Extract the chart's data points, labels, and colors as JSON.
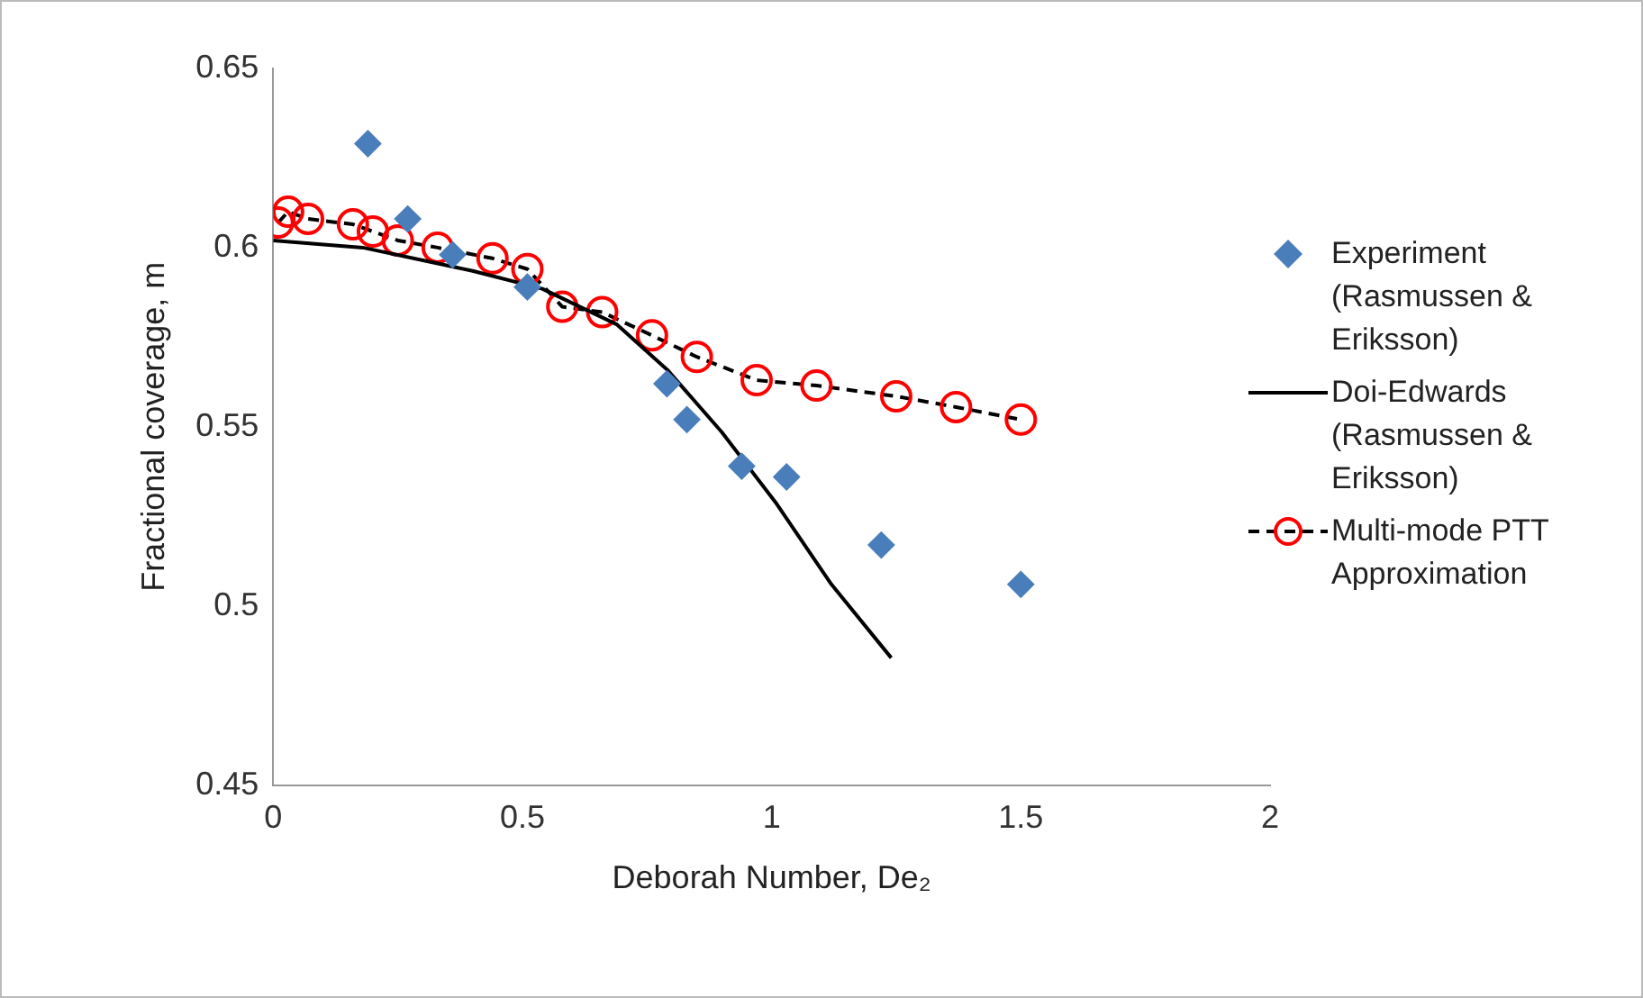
{
  "chart_data": {
    "type": "scatter",
    "xlabel": "Deborah Number, De₂",
    "ylabel": "Fractional coverage, m",
    "xlim": [
      0,
      2
    ],
    "xticks": [
      0,
      0.5,
      1,
      1.5,
      2
    ],
    "ylim": [
      0.45,
      0.65
    ],
    "yticks": [
      0.45,
      0.5,
      0.55,
      0.6,
      0.65
    ],
    "grid": false,
    "legend": "right",
    "series": [
      {
        "name": "Experiment (Rasmussen & Eriksson)",
        "marker": "diamond",
        "color": "#4a7ebb",
        "x": [
          0.19,
          0.27,
          0.36,
          0.51,
          0.79,
          0.83,
          0.94,
          1.03,
          1.22,
          1.5
        ],
        "values": [
          0.629,
          0.608,
          0.598,
          0.589,
          0.562,
          0.552,
          0.539,
          0.536,
          0.517,
          0.506
        ]
      },
      {
        "name": "Doi-Edwards (Rasmussen & Eriksson)",
        "type": "line",
        "marker": "none",
        "line_style": "solid",
        "color": "#000000",
        "x": [
          0,
          0.18,
          0.4,
          0.54,
          0.69,
          0.79,
          0.9,
          1.01,
          1.12,
          1.24
        ],
        "values": [
          0.602,
          0.6,
          0.5935,
          0.5885,
          0.5785,
          0.566,
          0.5485,
          0.5285,
          0.506,
          0.4855
        ]
      },
      {
        "name": "Multi-mode PTT Approximation",
        "type": "line",
        "marker": "circle",
        "line_style": "dashed",
        "color": "#ff0000",
        "x": [
          0.01,
          0.03,
          0.07,
          0.16,
          0.2,
          0.25,
          0.33,
          0.44,
          0.51,
          0.58,
          0.66,
          0.76,
          0.85,
          0.97,
          1.09,
          1.25,
          1.37,
          1.5
        ],
        "values": [
          0.607,
          0.61,
          0.608,
          0.6065,
          0.6045,
          0.602,
          0.6,
          0.597,
          0.594,
          0.5835,
          0.582,
          0.5755,
          0.5695,
          0.563,
          0.5615,
          0.5585,
          0.5555,
          0.552
        ]
      }
    ]
  }
}
